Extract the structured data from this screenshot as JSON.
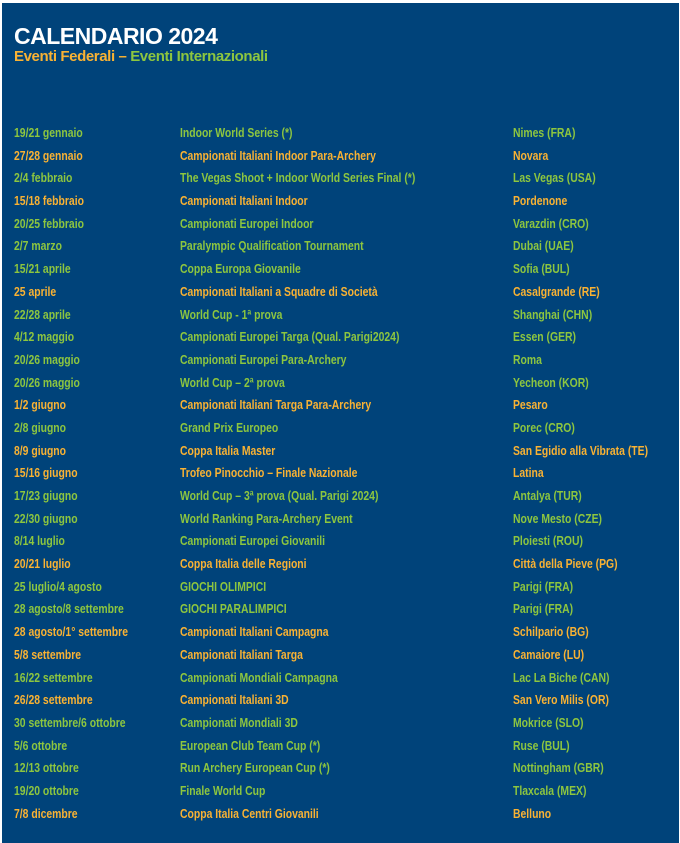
{
  "header": {
    "title": "CALENDARIO 2024",
    "legend_federal": "Eventi Federali",
    "legend_separator": " – ",
    "legend_international": "Eventi Internazionali"
  },
  "colors": {
    "background": "#00437a",
    "federal": "#f9b233",
    "international": "#8dc63f",
    "title": "#ffffff"
  },
  "events": [
    {
      "date": "19/21 gennaio",
      "event": "Indoor World Series (*)",
      "place": "Nimes (FRA)",
      "type": "international"
    },
    {
      "date": "27/28 gennaio",
      "event": "Campionati Italiani Indoor Para-Archery",
      "place": "Novara",
      "type": "federal"
    },
    {
      "date": "2/4 febbraio",
      "event": "The Vegas Shoot + Indoor World Series Final (*)",
      "place": "Las Vegas (USA)",
      "type": "international"
    },
    {
      "date": "15/18 febbraio",
      "event": "Campionati Italiani Indoor",
      "place": "Pordenone",
      "type": "federal"
    },
    {
      "date": "20/25 febbraio",
      "event": "Campionati Europei Indoor",
      "place": "Varazdin (CRO)",
      "type": "international"
    },
    {
      "date": "2/7 marzo",
      "event": "Paralympic Qualification Tournament",
      "place": "Dubai (UAE)",
      "type": "international"
    },
    {
      "date": "15/21 aprile",
      "event": "Coppa Europa Giovanile",
      "place": "Sofia (BUL)",
      "type": "international"
    },
    {
      "date": "25 aprile",
      "event": "Campionati Italiani a Squadre di Società",
      "place": "Casalgrande (RE)",
      "type": "federal"
    },
    {
      "date": "22/28 aprile",
      "event": "World Cup - 1ª prova",
      "place": "Shanghai (CHN)",
      "type": "international"
    },
    {
      "date": "4/12 maggio",
      "event": "Campionati Europei Targa (Qual. Parigi2024)",
      "place": "Essen (GER)",
      "type": "international"
    },
    {
      "date": "20/26 maggio",
      "event": "Campionati Europei Para-Archery",
      "place": "Roma",
      "type": "international"
    },
    {
      "date": "20/26 maggio",
      "event": "World Cup – 2ª prova",
      "place": "Yecheon (KOR)",
      "type": "international"
    },
    {
      "date": "1/2 giugno",
      "event": "Campionati Italiani Targa Para-Archery",
      "place": "Pesaro",
      "type": "federal"
    },
    {
      "date": "2/8 giugno",
      "event": "Grand Prix Europeo",
      "place": "Porec (CRO)",
      "type": "international"
    },
    {
      "date": "8/9 giugno",
      "event": "Coppa Italia Master",
      "place": "San Egidio alla Vibrata (TE)",
      "type": "federal"
    },
    {
      "date": "15/16 giugno",
      "event": "Trofeo Pinocchio – Finale Nazionale",
      "place": "Latina",
      "type": "federal"
    },
    {
      "date": "17/23 giugno",
      "event": "World Cup – 3ª prova (Qual. Parigi 2024)",
      "place": "Antalya (TUR)",
      "type": "international"
    },
    {
      "date": "22/30 giugno",
      "event": "World Ranking Para-Archery Event",
      "place": "Nove Mesto (CZE)",
      "type": "international"
    },
    {
      "date": "8/14 luglio",
      "event": "Campionati Europei Giovanili",
      "place": "Ploiesti (ROU)",
      "type": "international"
    },
    {
      "date": "20/21 luglio",
      "event": "Coppa Italia delle Regioni",
      "place": "Città della Pieve (PG)",
      "type": "federal"
    },
    {
      "date": "25 luglio/4 agosto",
      "event": "GIOCHI OLIMPICI",
      "place": "Parigi (FRA)",
      "type": "international"
    },
    {
      "date": "28 agosto/8 settembre",
      "event": "GIOCHI PARALIMPICI",
      "place": "Parigi (FRA)",
      "type": "international"
    },
    {
      "date": "28 agosto/1° settembre",
      "event": "Campionati Italiani Campagna",
      "place": "Schilpario (BG)",
      "type": "federal"
    },
    {
      "date": "5/8 settembre",
      "event": "Campionati Italiani Targa",
      "place": "Camaiore (LU)",
      "type": "federal"
    },
    {
      "date": "16/22 settembre",
      "event": "Campionati Mondiali Campagna",
      "place": "Lac La Biche (CAN)",
      "type": "international"
    },
    {
      "date": "26/28 settembre",
      "event": "Campionati Italiani 3D",
      "place": "San Vero Milis (OR)",
      "type": "federal"
    },
    {
      "date": "30 settembre/6 ottobre",
      "event": "Campionati Mondiali 3D",
      "place": "Mokrice (SLO)",
      "type": "international"
    },
    {
      "date": "5/6 ottobre",
      "event": "European Club Team Cup (*)",
      "place": "Ruse (BUL)",
      "type": "international"
    },
    {
      "date": "12/13 ottobre",
      "event": "Run Archery European Cup (*)",
      "place": "Nottingham (GBR)",
      "type": "international"
    },
    {
      "date": "19/20 ottobre",
      "event": "Finale World Cup",
      "place": "Tlaxcala (MEX)",
      "type": "international"
    },
    {
      "date": "7/8 dicembre",
      "event": "Coppa Italia Centri Giovanili",
      "place": "Belluno",
      "type": "federal"
    }
  ]
}
